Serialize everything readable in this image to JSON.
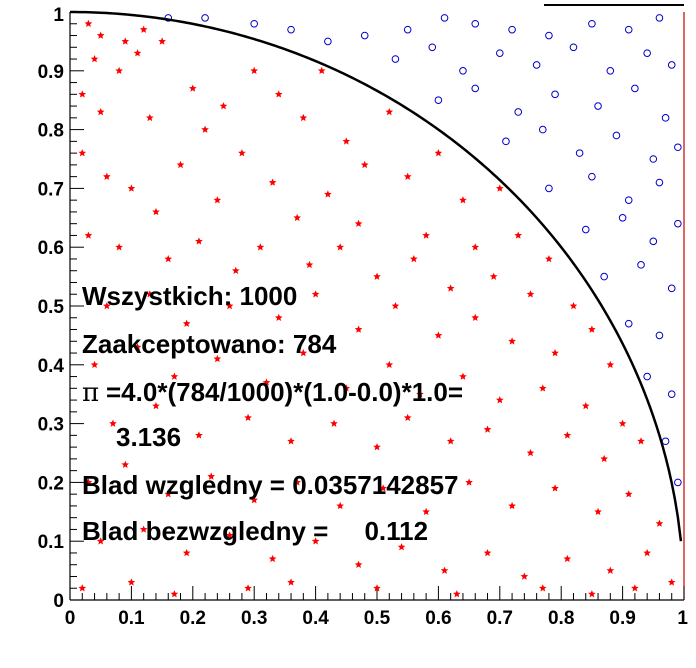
{
  "chart_data": {
    "type": "scatter",
    "xlim": [
      0,
      1
    ],
    "ylim": [
      0,
      1
    ],
    "x_ticks": [
      "0",
      "0.1",
      "0.2",
      "0.3",
      "0.4",
      "0.5",
      "0.6",
      "0.7",
      "0.8",
      "0.9",
      "1"
    ],
    "y_ticks": [
      "0",
      "0.1",
      "0.2",
      "0.3",
      "0.4",
      "0.5",
      "0.6",
      "0.7",
      "0.8",
      "0.9",
      "1"
    ],
    "grid": false,
    "total_points": 1000,
    "accepted_points": 784,
    "series": [
      {
        "role": "accepted",
        "marker": "star",
        "color": "#ff0000",
        "points": [
          [
            0.03,
            0.98
          ],
          [
            0.05,
            0.96
          ],
          [
            0.09,
            0.95
          ],
          [
            0.12,
            0.97
          ],
          [
            0.15,
            0.95
          ],
          [
            0.04,
            0.92
          ],
          [
            0.08,
            0.9
          ],
          [
            0.11,
            0.93
          ],
          [
            0.02,
            0.86
          ],
          [
            0.2,
            0.87
          ],
          [
            0.05,
            0.83
          ],
          [
            0.13,
            0.82
          ],
          [
            0.22,
            0.8
          ],
          [
            0.3,
            0.9
          ],
          [
            0.34,
            0.86
          ],
          [
            0.38,
            0.82
          ],
          [
            0.41,
            0.9
          ],
          [
            0.25,
            0.84
          ],
          [
            0.28,
            0.76
          ],
          [
            0.45,
            0.78
          ],
          [
            0.52,
            0.83
          ],
          [
            0.48,
            0.74
          ],
          [
            0.55,
            0.72
          ],
          [
            0.6,
            0.76
          ],
          [
            0.64,
            0.68
          ],
          [
            0.7,
            0.7
          ],
          [
            0.02,
            0.76
          ],
          [
            0.06,
            0.72
          ],
          [
            0.1,
            0.7
          ],
          [
            0.14,
            0.66
          ],
          [
            0.18,
            0.74
          ],
          [
            0.24,
            0.68
          ],
          [
            0.33,
            0.71
          ],
          [
            0.37,
            0.65
          ],
          [
            0.42,
            0.69
          ],
          [
            0.47,
            0.64
          ],
          [
            0.58,
            0.62
          ],
          [
            0.66,
            0.6
          ],
          [
            0.73,
            0.62
          ],
          [
            0.78,
            0.58
          ],
          [
            0.03,
            0.62
          ],
          [
            0.08,
            0.6
          ],
          [
            0.16,
            0.58
          ],
          [
            0.21,
            0.61
          ],
          [
            0.27,
            0.56
          ],
          [
            0.31,
            0.6
          ],
          [
            0.39,
            0.57
          ],
          [
            0.44,
            0.6
          ],
          [
            0.5,
            0.55
          ],
          [
            0.56,
            0.58
          ],
          [
            0.62,
            0.53
          ],
          [
            0.69,
            0.55
          ],
          [
            0.75,
            0.52
          ],
          [
            0.82,
            0.5
          ],
          [
            0.85,
            0.46
          ],
          [
            0.06,
            0.5
          ],
          [
            0.13,
            0.52
          ],
          [
            0.19,
            0.47
          ],
          [
            0.26,
            0.5
          ],
          [
            0.34,
            0.48
          ],
          [
            0.4,
            0.52
          ],
          [
            0.47,
            0.46
          ],
          [
            0.53,
            0.5
          ],
          [
            0.6,
            0.45
          ],
          [
            0.66,
            0.48
          ],
          [
            0.72,
            0.44
          ],
          [
            0.79,
            0.42
          ],
          [
            0.88,
            0.4
          ],
          [
            0.04,
            0.4
          ],
          [
            0.11,
            0.43
          ],
          [
            0.17,
            0.38
          ],
          [
            0.24,
            0.41
          ],
          [
            0.32,
            0.37
          ],
          [
            0.38,
            0.42
          ],
          [
            0.45,
            0.36
          ],
          [
            0.52,
            0.4
          ],
          [
            0.57,
            0.35
          ],
          [
            0.64,
            0.38
          ],
          [
            0.7,
            0.34
          ],
          [
            0.77,
            0.36
          ],
          [
            0.84,
            0.33
          ],
          [
            0.9,
            0.3
          ],
          [
            0.07,
            0.3
          ],
          [
            0.14,
            0.33
          ],
          [
            0.21,
            0.28
          ],
          [
            0.29,
            0.31
          ],
          [
            0.36,
            0.27
          ],
          [
            0.43,
            0.3
          ],
          [
            0.5,
            0.26
          ],
          [
            0.55,
            0.31
          ],
          [
            0.62,
            0.27
          ],
          [
            0.68,
            0.29
          ],
          [
            0.75,
            0.25
          ],
          [
            0.81,
            0.28
          ],
          [
            0.87,
            0.24
          ],
          [
            0.93,
            0.27
          ],
          [
            0.03,
            0.2
          ],
          [
            0.09,
            0.23
          ],
          [
            0.16,
            0.18
          ],
          [
            0.23,
            0.21
          ],
          [
            0.3,
            0.17
          ],
          [
            0.37,
            0.2
          ],
          [
            0.44,
            0.16
          ],
          [
            0.51,
            0.19
          ],
          [
            0.58,
            0.15
          ],
          [
            0.65,
            0.2
          ],
          [
            0.72,
            0.16
          ],
          [
            0.79,
            0.19
          ],
          [
            0.86,
            0.15
          ],
          [
            0.91,
            0.18
          ],
          [
            0.96,
            0.13
          ],
          [
            0.05,
            0.1
          ],
          [
            0.12,
            0.12
          ],
          [
            0.19,
            0.08
          ],
          [
            0.26,
            0.11
          ],
          [
            0.33,
            0.07
          ],
          [
            0.4,
            0.1
          ],
          [
            0.47,
            0.06
          ],
          [
            0.54,
            0.09
          ],
          [
            0.61,
            0.05
          ],
          [
            0.68,
            0.08
          ],
          [
            0.74,
            0.04
          ],
          [
            0.81,
            0.07
          ],
          [
            0.88,
            0.05
          ],
          [
            0.94,
            0.08
          ],
          [
            0.98,
            0.03
          ],
          [
            0.02,
            0.02
          ],
          [
            0.1,
            0.03
          ],
          [
            0.17,
            0.01
          ],
          [
            0.29,
            0.02
          ],
          [
            0.36,
            0.03
          ],
          [
            0.5,
            0.02
          ],
          [
            0.63,
            0.01
          ],
          [
            0.77,
            0.02
          ],
          [
            0.85,
            0.01
          ],
          [
            0.92,
            0.02
          ]
        ]
      },
      {
        "role": "rejected",
        "marker": "circle",
        "color": "#0000cc",
        "points": [
          [
            0.16,
            0.99
          ],
          [
            0.22,
            0.99
          ],
          [
            0.3,
            0.98
          ],
          [
            0.36,
            0.97
          ],
          [
            0.42,
            0.95
          ],
          [
            0.48,
            0.96
          ],
          [
            0.55,
            0.97
          ],
          [
            0.61,
            0.99
          ],
          [
            0.66,
            0.98
          ],
          [
            0.72,
            0.97
          ],
          [
            0.78,
            0.96
          ],
          [
            0.85,
            0.98
          ],
          [
            0.91,
            0.97
          ],
          [
            0.96,
            0.99
          ],
          [
            0.53,
            0.92
          ],
          [
            0.59,
            0.94
          ],
          [
            0.64,
            0.9
          ],
          [
            0.7,
            0.93
          ],
          [
            0.76,
            0.91
          ],
          [
            0.82,
            0.94
          ],
          [
            0.88,
            0.9
          ],
          [
            0.94,
            0.93
          ],
          [
            0.98,
            0.91
          ],
          [
            0.6,
            0.85
          ],
          [
            0.66,
            0.87
          ],
          [
            0.73,
            0.83
          ],
          [
            0.79,
            0.86
          ],
          [
            0.86,
            0.84
          ],
          [
            0.92,
            0.87
          ],
          [
            0.97,
            0.82
          ],
          [
            0.71,
            0.78
          ],
          [
            0.77,
            0.8
          ],
          [
            0.83,
            0.76
          ],
          [
            0.89,
            0.79
          ],
          [
            0.95,
            0.75
          ],
          [
            0.99,
            0.77
          ],
          [
            0.78,
            0.7
          ],
          [
            0.85,
            0.72
          ],
          [
            0.91,
            0.68
          ],
          [
            0.96,
            0.71
          ],
          [
            0.84,
            0.63
          ],
          [
            0.9,
            0.65
          ],
          [
            0.95,
            0.61
          ],
          [
            0.99,
            0.64
          ],
          [
            0.87,
            0.55
          ],
          [
            0.93,
            0.57
          ],
          [
            0.98,
            0.53
          ],
          [
            0.91,
            0.47
          ],
          [
            0.96,
            0.45
          ],
          [
            0.94,
            0.38
          ],
          [
            0.98,
            0.35
          ],
          [
            0.97,
            0.27
          ],
          [
            0.99,
            0.2
          ]
        ]
      }
    ],
    "curve": "quarter-circle"
  },
  "annotations": {
    "line1": "Wszystkich: 1000",
    "line2": "Zaakceptowano: 784",
    "pi_symbol": "π",
    "line3": "=4.0*(784/1000)*(1.0-0.0)*1.0=",
    "line4": "3.136",
    "line5": "Blad wzgledny = 0.0357142857",
    "line6": "Blad bezwzgledny =     0.112"
  }
}
